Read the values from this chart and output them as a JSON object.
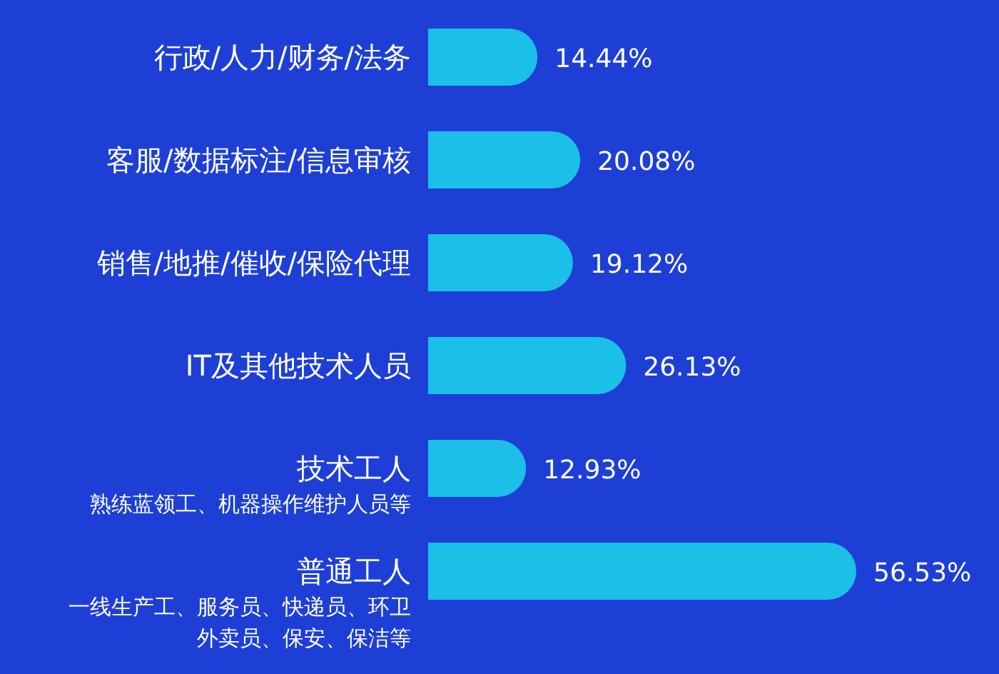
{
  "chart_data": {
    "type": "bar",
    "orientation": "horizontal",
    "relative": false,
    "data_labels": true,
    "categories": [
      "行政/人力/财务/法务",
      "客服/数据标注/信息审核",
      "销售/地推/催收/保险代理",
      "IT及其他技术人员",
      "技术工人",
      "普通工人"
    ],
    "annotations": [
      "熟练蓝领工、机器操作维护人员等",
      "一线生产工、服务员、快递员、环卫外卖员、保安、保洁等"
    ],
    "values": [
      14.44,
      20.08,
      19.12,
      26.13,
      12.93,
      56.53
    ],
    "value_labels": [
      "14.44%",
      "20.08%",
      "19.12%",
      "26.13%",
      "12.93%",
      "56.53%"
    ],
    "color": "#1bbfe8"
  }
}
